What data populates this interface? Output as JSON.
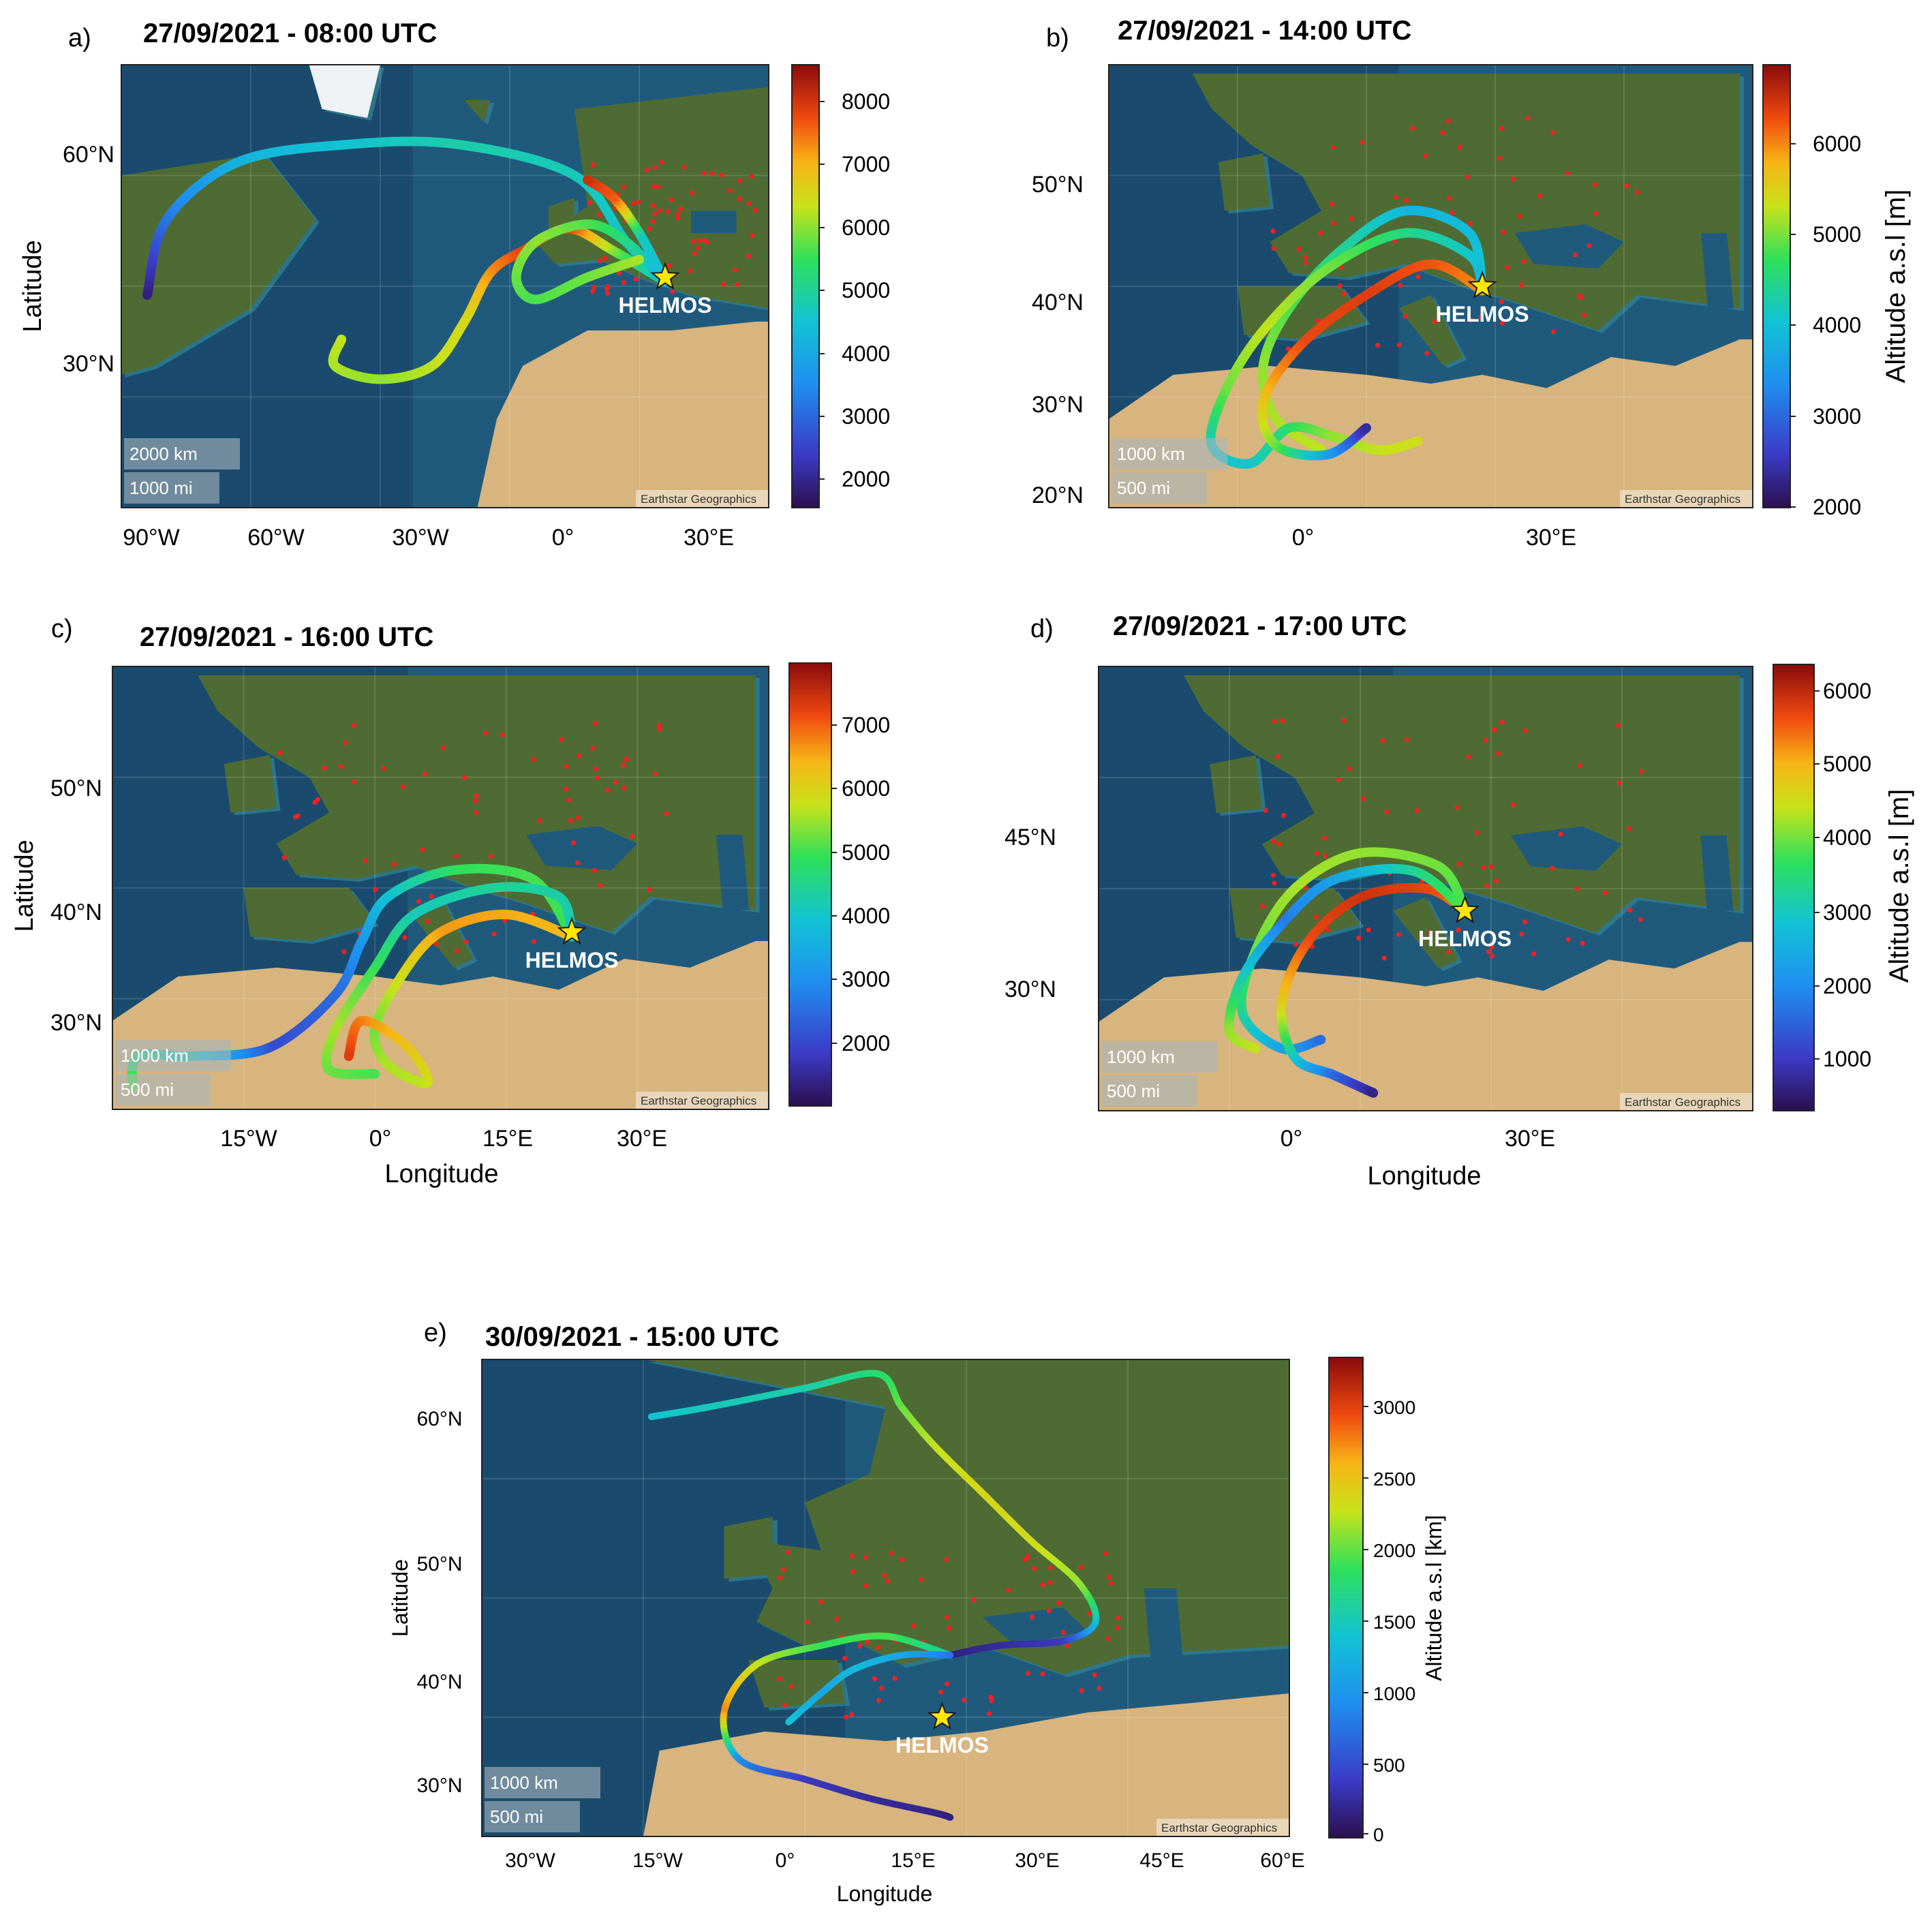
{
  "colors": {
    "ocean_deep": "#163f63",
    "ocean": "#1f5a7d",
    "shelf": "#2f7f92",
    "land_green": "#4f6b34",
    "land_dark": "#3a522a",
    "desert": "#d8b47e",
    "ice": "#eef2f4",
    "cities": "#ff1e1e",
    "star": "#ffe800"
  },
  "panels": [
    {
      "letter": "a)",
      "title": "27/09/2021 - 08:00 UTC",
      "ylabel": "Latitude",
      "xlabel": "",
      "cbar_label": "",
      "cbar_ticks": [
        "8000",
        "7000",
        "6000",
        "5000",
        "4000",
        "3000",
        "2000"
      ],
      "lat_ticks": [
        "60°N",
        "30°N"
      ],
      "lon_ticks": [
        "90°W",
        "60°W",
        "30°W",
        "0°",
        "30°E"
      ],
      "scale_km": "2000 km",
      "scale_mi": "1000 mi",
      "attribution": "Earthstar Geographics",
      "station": "HELMOS"
    },
    {
      "letter": "b)",
      "title": "27/09/2021 - 14:00 UTC",
      "ylabel": "",
      "xlabel": "",
      "cbar_label": "Altitude a.s.l [m]",
      "cbar_ticks": [
        "6000",
        "5000",
        "4000",
        "3000",
        "2000"
      ],
      "lat_ticks": [
        "50°N",
        "40°N",
        "30°N",
        "20°N"
      ],
      "lon_ticks": [
        "0°",
        "30°E"
      ],
      "scale_km": "1000 km",
      "scale_mi": "500 mi",
      "attribution": "Earthstar Geographics",
      "station": "HELMOS"
    },
    {
      "letter": "c)",
      "title": "27/09/2021 - 16:00 UTC",
      "ylabel": "Latitude",
      "xlabel": "Longitude",
      "cbar_label": "",
      "cbar_ticks": [
        "7000",
        "6000",
        "5000",
        "4000",
        "3000",
        "2000"
      ],
      "lat_ticks": [
        "50°N",
        "40°N",
        "30°N"
      ],
      "lon_ticks": [
        "15°W",
        "0°",
        "15°E",
        "30°E"
      ],
      "scale_km": "1000 km",
      "scale_mi": "500 mi",
      "attribution": "Earthstar Geographics",
      "station": "HELMOS"
    },
    {
      "letter": "d)",
      "title": "27/09/2021 - 17:00 UTC",
      "ylabel": "",
      "xlabel": "Longitude",
      "cbar_label": "Altitude a.s.l [m]",
      "cbar_ticks": [
        "6000",
        "5000",
        "4000",
        "3000",
        "2000",
        "1000"
      ],
      "lat_ticks": [
        "45°N",
        "30°N"
      ],
      "lon_ticks": [
        "0°",
        "30°E"
      ],
      "scale_km": "1000 km",
      "scale_mi": "500 mi",
      "attribution": "Earthstar Geographics",
      "station": "HELMOS"
    },
    {
      "letter": "e)",
      "title": "30/09/2021 - 15:00 UTC",
      "ylabel": "Latitude",
      "xlabel": "Longitude",
      "cbar_label": "Altitude a.s.l [km]",
      "cbar_ticks": [
        "3000",
        "2500",
        "2000",
        "1500",
        "1000",
        "500",
        "0"
      ],
      "lat_ticks": [
        "60°N",
        "50°N",
        "40°N",
        "30°N"
      ],
      "lon_ticks": [
        "30°W",
        "15°W",
        "0°",
        "15°E",
        "30°E",
        "45°E",
        "60°E"
      ],
      "scale_km": "1000 km",
      "scale_mi": "500 mi",
      "attribution": "Earthstar Geographics",
      "station": "HELMOS"
    }
  ]
}
